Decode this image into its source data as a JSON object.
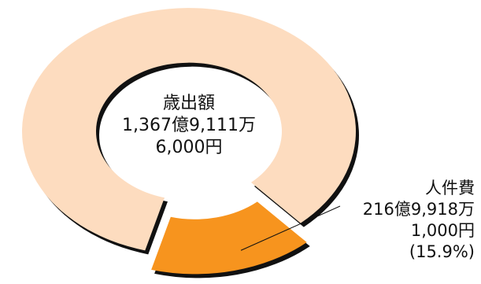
{
  "chart_data": {
    "type": "pie",
    "total": {
      "label": "歳出額",
      "amount_line1": "1,367億9,111万",
      "amount_line2": "6,000円"
    },
    "slices": [
      {
        "label": "人件費",
        "amount_line1": "216億9,918万",
        "amount_line2": "1,000円",
        "percent_text": "(15.9%)",
        "value": 15.9,
        "color": "#f7941e"
      },
      {
        "label": "",
        "value": 84.1,
        "color": "#fddcbf"
      }
    ]
  }
}
